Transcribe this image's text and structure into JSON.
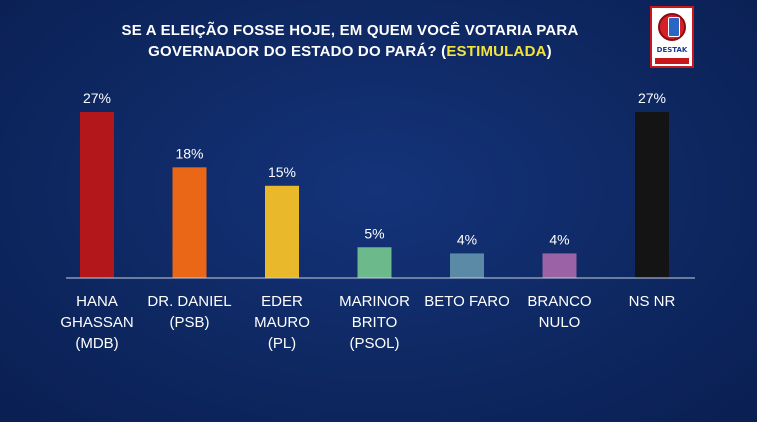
{
  "title": {
    "line1": "SE A ELEIÇÃO FOSSE HOJE, EM QUEM VOCÊ VOTARIA PARA",
    "line2_prefix": "GOVERNADOR DO ESTADO DO PARÁ? (",
    "line2_highlight": "ESTIMULADA",
    "line2_suffix": ")"
  },
  "logo": {
    "name": "DESTAK"
  },
  "colors": {
    "background": "#0f2a66",
    "highlight": "#f5e33a",
    "baseline": "#c9cfdd"
  },
  "chart_data": {
    "type": "bar",
    "categories": [
      [
        "HANA",
        "GHASSAN",
        "(MDB)"
      ],
      [
        "DR. DANIEL",
        "(PSB)"
      ],
      [
        "EDER",
        "MAURO",
        "(PL)"
      ],
      [
        "MARINOR",
        "BRITO",
        "(PSOL)"
      ],
      [
        "BETO FARO"
      ],
      [
        "BRANCO",
        "NULO"
      ],
      [
        "NS NR"
      ]
    ],
    "values": [
      27,
      18,
      15,
      5,
      4,
      4,
      27
    ],
    "value_labels": [
      "27%",
      "18%",
      "15%",
      "5%",
      "4%",
      "4%",
      "27%"
    ],
    "bar_colors": [
      "#b3171c",
      "#ea6717",
      "#e9b92b",
      "#6cb98c",
      "#5a8aa6",
      "#9b62a6",
      "#141414"
    ],
    "ylim": [
      0,
      27
    ],
    "grid": false,
    "legend": "none"
  }
}
